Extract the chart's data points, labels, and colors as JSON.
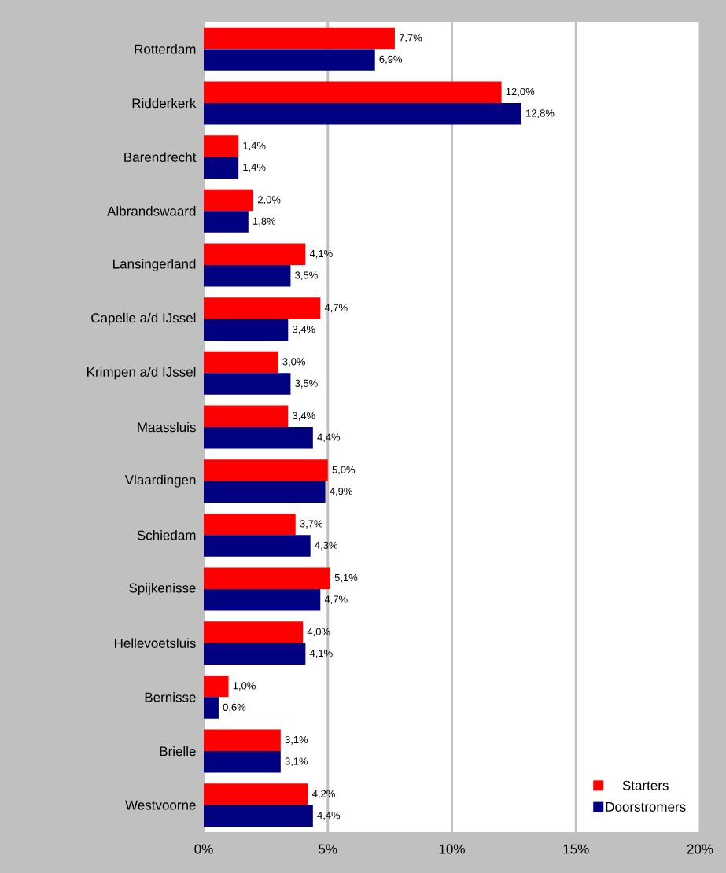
{
  "chart_data": {
    "type": "bar",
    "orientation": "horizontal",
    "categories": [
      "Rotterdam",
      "Ridderkerk",
      "Barendrecht",
      "Albrandswaard",
      "Lansingerland",
      "Capelle a/d IJssel",
      "Krimpen a/d IJssel",
      "Maassluis",
      "Vlaardingen",
      "Schiedam",
      "Spijkenisse",
      "Hellevoetsluis",
      "Bernisse",
      "Brielle",
      "Westvoorne"
    ],
    "series": [
      {
        "name": "Starters",
        "color": "#ff0000",
        "values": [
          7.7,
          12.0,
          1.4,
          2.0,
          4.1,
          4.7,
          3.0,
          3.4,
          5.0,
          3.7,
          5.1,
          4.0,
          1.0,
          3.1,
          4.2
        ],
        "value_labels": [
          "7,7%",
          "12,0%",
          "1,4%",
          "2,0%",
          "4,1%",
          "4,7%",
          "3,0%",
          "3,4%",
          "5,0%",
          "3,7%",
          "5,1%",
          "4,0%",
          "1,0%",
          "3,1%",
          "4,2%"
        ]
      },
      {
        "name": "Doorstromers",
        "color": "#000080",
        "values": [
          6.9,
          12.8,
          1.4,
          1.8,
          3.5,
          3.4,
          3.5,
          4.4,
          4.9,
          4.3,
          4.7,
          4.1,
          0.6,
          3.1,
          4.4
        ],
        "value_labels": [
          "6,9%",
          "12,8%",
          "1,4%",
          "1,8%",
          "3,5%",
          "3,4%",
          "3,5%",
          "4,4%",
          "4,9%",
          "4,3%",
          "4,7%",
          "4,1%",
          "0,6%",
          "3,1%",
          "4,4%"
        ]
      }
    ],
    "xlim": [
      0,
      20
    ],
    "xticks": [
      {
        "value": 0,
        "label": "0%"
      },
      {
        "value": 5,
        "label": "5%"
      },
      {
        "value": 10,
        "label": "10%"
      },
      {
        "value": 15,
        "label": "15%"
      },
      {
        "value": 20,
        "label": "20%"
      }
    ],
    "grid": "x",
    "legend": "bottom right"
  }
}
